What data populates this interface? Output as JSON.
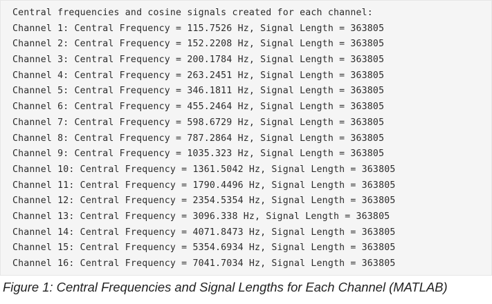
{
  "console": {
    "lines": [
      "Central frequencies and cosine signals created for each channel:",
      "Channel 1: Central Frequency = 115.7526 Hz, Signal Length = 363805",
      "Channel 2: Central Frequency = 152.2208 Hz, Signal Length = 363805",
      "Channel 3: Central Frequency = 200.1784 Hz, Signal Length = 363805",
      "Channel 4: Central Frequency = 263.2451 Hz, Signal Length = 363805",
      "Channel 5: Central Frequency = 346.1811 Hz, Signal Length = 363805",
      "Channel 6: Central Frequency = 455.2464 Hz, Signal Length = 363805",
      "Channel 7: Central Frequency = 598.6729 Hz, Signal Length = 363805",
      "Channel 8: Central Frequency = 787.2864 Hz, Signal Length = 363805",
      "Channel 9: Central Frequency = 1035.323 Hz, Signal Length = 363805",
      "Channel 10: Central Frequency = 1361.5042 Hz, Signal Length = 363805",
      "Channel 11: Central Frequency = 1790.4496 Hz, Signal Length = 363805",
      "Channel 12: Central Frequency = 2354.5354 Hz, Signal Length = 363805",
      "Channel 13: Central Frequency = 3096.338 Hz, Signal Length = 363805",
      "Channel 14: Central Frequency = 4071.8473 Hz, Signal Length = 363805",
      "Channel 15: Central Frequency = 5354.6934 Hz, Signal Length = 363805",
      "Channel 16: Central Frequency = 7041.7034 Hz, Signal Length = 363805"
    ]
  },
  "caption": "Figure 1: Central Frequencies and Signal Lengths for Each Channel (MATLAB)"
}
